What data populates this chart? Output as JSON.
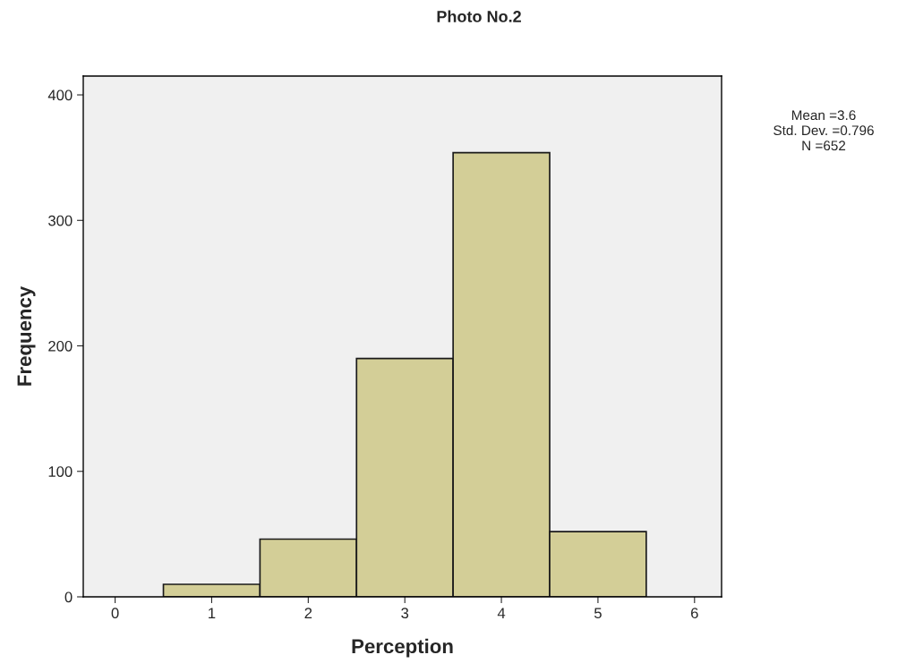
{
  "chart_data": {
    "type": "histogram",
    "title": "Photo No.2",
    "xlabel": "Perception",
    "ylabel": "Frequency",
    "bins": [
      0.5,
      1.5,
      2.5,
      3.5,
      4.5,
      5.5
    ],
    "values": [
      10,
      46,
      190,
      354,
      52
    ],
    "color": "#d3ce97",
    "xlim": [
      -0.33,
      6.28
    ],
    "xticks": [
      0,
      1,
      2,
      3,
      4,
      5,
      6
    ],
    "ylim": [
      0,
      415
    ],
    "yticks": [
      0,
      100,
      200,
      300,
      400
    ],
    "grid": false,
    "legend": false,
    "annotations": [
      "Mean =3.6",
      "Std. Dev. =0.796",
      "N =652"
    ]
  }
}
